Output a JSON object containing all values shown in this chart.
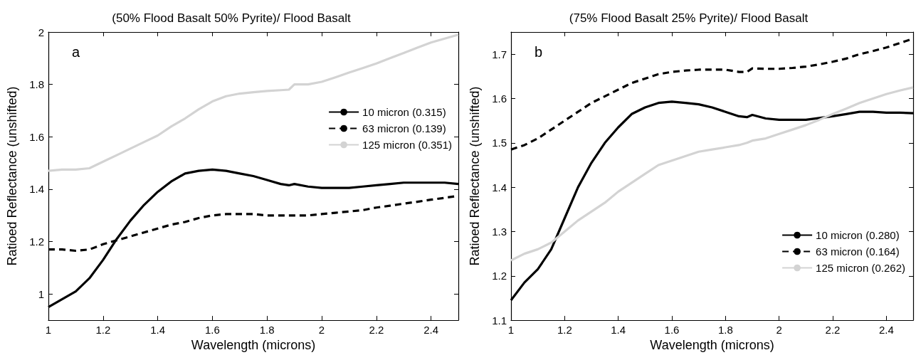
{
  "chart_data": [
    {
      "type": "line",
      "title": "(50% Flood Basalt 50% Pyrite)/ Flood Basalt",
      "xlabel": "Wavelength (microns)",
      "ylabel": "Ratioed Reflectance (unshifted)",
      "annotations": [
        "a"
      ],
      "xlim": [
        1,
        2.5
      ],
      "ylim": [
        0.9,
        2
      ],
      "xticks": [
        1,
        1.2,
        1.4,
        1.6,
        1.8,
        2,
        2.2,
        2.4
      ],
      "yticks": [
        1,
        1.2,
        1.4,
        1.6,
        1.8,
        2
      ],
      "grid": false,
      "legend": "top right",
      "marker": "none",
      "x": [
        1,
        1.05,
        1.1,
        1.15,
        1.2,
        1.25,
        1.3,
        1.35,
        1.4,
        1.45,
        1.5,
        1.55,
        1.6,
        1.65,
        1.7,
        1.75,
        1.8,
        1.85,
        1.88,
        1.9,
        1.95,
        2,
        2.05,
        2.1,
        2.15,
        2.2,
        2.25,
        2.3,
        2.35,
        2.4,
        2.45,
        2.5
      ],
      "series": [
        {
          "name": "10 micron (0.315)",
          "color": "#000000",
          "line_style": "solid",
          "values": [
            0.95,
            0.98,
            1.01,
            1.06,
            1.13,
            1.21,
            1.28,
            1.34,
            1.39,
            1.43,
            1.46,
            1.47,
            1.475,
            1.47,
            1.46,
            1.45,
            1.435,
            1.42,
            1.415,
            1.42,
            1.41,
            1.405,
            1.405,
            1.405,
            1.41,
            1.415,
            1.42,
            1.425,
            1.425,
            1.425,
            1.425,
            1.42
          ]
        },
        {
          "name": "63 micron (0.139)",
          "color": "#000000",
          "line_style": "dashed",
          "values": [
            1.17,
            1.17,
            1.165,
            1.17,
            1.19,
            1.205,
            1.22,
            1.235,
            1.25,
            1.265,
            1.275,
            1.29,
            1.3,
            1.305,
            1.305,
            1.305,
            1.3,
            1.3,
            1.3,
            1.3,
            1.3,
            1.305,
            1.31,
            1.315,
            1.32,
            1.33,
            1.337,
            1.345,
            1.352,
            1.36,
            1.367,
            1.375
          ]
        },
        {
          "name": "125 micron (0.351)",
          "color": "#d3d3d3",
          "line_style": "solid",
          "values": [
            1.47,
            1.475,
            1.475,
            1.48,
            1.505,
            1.53,
            1.555,
            1.58,
            1.605,
            1.64,
            1.67,
            1.705,
            1.735,
            1.755,
            1.765,
            1.77,
            1.775,
            1.778,
            1.78,
            1.8,
            1.8,
            1.81,
            1.827,
            1.845,
            1.862,
            1.88,
            1.9,
            1.92,
            1.94,
            1.96,
            1.975,
            1.99
          ]
        }
      ]
    },
    {
      "type": "line",
      "title": "(75% Flood Basalt 25% Pyrite)/ Flood Basalt",
      "xlabel": "Wavelength (microns)",
      "ylabel": "Ratioed Reflectance (unshifted)",
      "annotations": [
        "b"
      ],
      "xlim": [
        1,
        2.5
      ],
      "ylim": [
        1.1,
        1.75
      ],
      "xticks": [
        1,
        1.2,
        1.4,
        1.6,
        1.8,
        2,
        2.2,
        2.4
      ],
      "yticks": [
        1.1,
        1.2,
        1.3,
        1.4,
        1.5,
        1.6,
        1.7
      ],
      "grid": false,
      "legend": "bottom right",
      "marker": "none",
      "x": [
        1,
        1.05,
        1.1,
        1.15,
        1.2,
        1.25,
        1.3,
        1.35,
        1.4,
        1.45,
        1.5,
        1.55,
        1.6,
        1.65,
        1.7,
        1.75,
        1.8,
        1.85,
        1.88,
        1.9,
        1.95,
        2,
        2.05,
        2.1,
        2.15,
        2.2,
        2.25,
        2.3,
        2.35,
        2.4,
        2.45,
        2.5
      ],
      "series": [
        {
          "name": "10 micron (0.280)",
          "color": "#000000",
          "line_style": "solid",
          "values": [
            1.145,
            1.185,
            1.215,
            1.26,
            1.33,
            1.4,
            1.455,
            1.5,
            1.535,
            1.565,
            1.58,
            1.59,
            1.593,
            1.59,
            1.587,
            1.58,
            1.57,
            1.56,
            1.558,
            1.563,
            1.555,
            1.552,
            1.552,
            1.552,
            1.556,
            1.56,
            1.565,
            1.57,
            1.57,
            1.568,
            1.568,
            1.567
          ]
        },
        {
          "name": "63 micron (0.164)",
          "color": "#000000",
          "line_style": "dashed",
          "values": [
            1.485,
            1.495,
            1.51,
            1.53,
            1.55,
            1.57,
            1.59,
            1.605,
            1.62,
            1.635,
            1.645,
            1.655,
            1.66,
            1.663,
            1.665,
            1.665,
            1.665,
            1.66,
            1.66,
            1.668,
            1.667,
            1.667,
            1.669,
            1.672,
            1.677,
            1.683,
            1.69,
            1.7,
            1.707,
            1.715,
            1.725,
            1.735
          ]
        },
        {
          "name": "125 micron (0.262)",
          "color": "#d3d3d3",
          "line_style": "solid",
          "values": [
            1.235,
            1.25,
            1.26,
            1.275,
            1.3,
            1.325,
            1.345,
            1.365,
            1.39,
            1.41,
            1.43,
            1.45,
            1.46,
            1.47,
            1.48,
            1.485,
            1.49,
            1.495,
            1.5,
            1.505,
            1.51,
            1.52,
            1.53,
            1.54,
            1.552,
            1.565,
            1.577,
            1.59,
            1.6,
            1.61,
            1.618,
            1.625
          ]
        }
      ]
    }
  ]
}
